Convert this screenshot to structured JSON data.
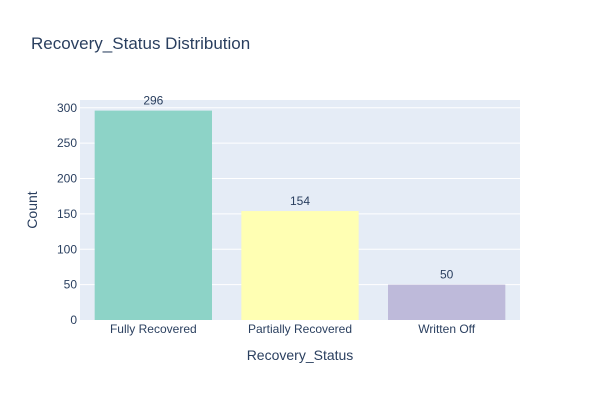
{
  "chart_data": {
    "type": "bar",
    "title": "Recovery_Status Distribution",
    "xlabel": "Recovery_Status",
    "ylabel": "Count",
    "categories": [
      "Fully Recovered",
      "Partially Recovered",
      "Written Off"
    ],
    "values": [
      296,
      154,
      50
    ],
    "data_labels": [
      "296",
      "154",
      "50"
    ],
    "colors": [
      "#8dd3c7",
      "#ffffb3",
      "#bebada"
    ],
    "ylim": [
      0,
      311
    ],
    "yticks": [
      0,
      50,
      100,
      150,
      200,
      250,
      300
    ],
    "grid": true,
    "plot_bg": "#e5ecf6"
  }
}
